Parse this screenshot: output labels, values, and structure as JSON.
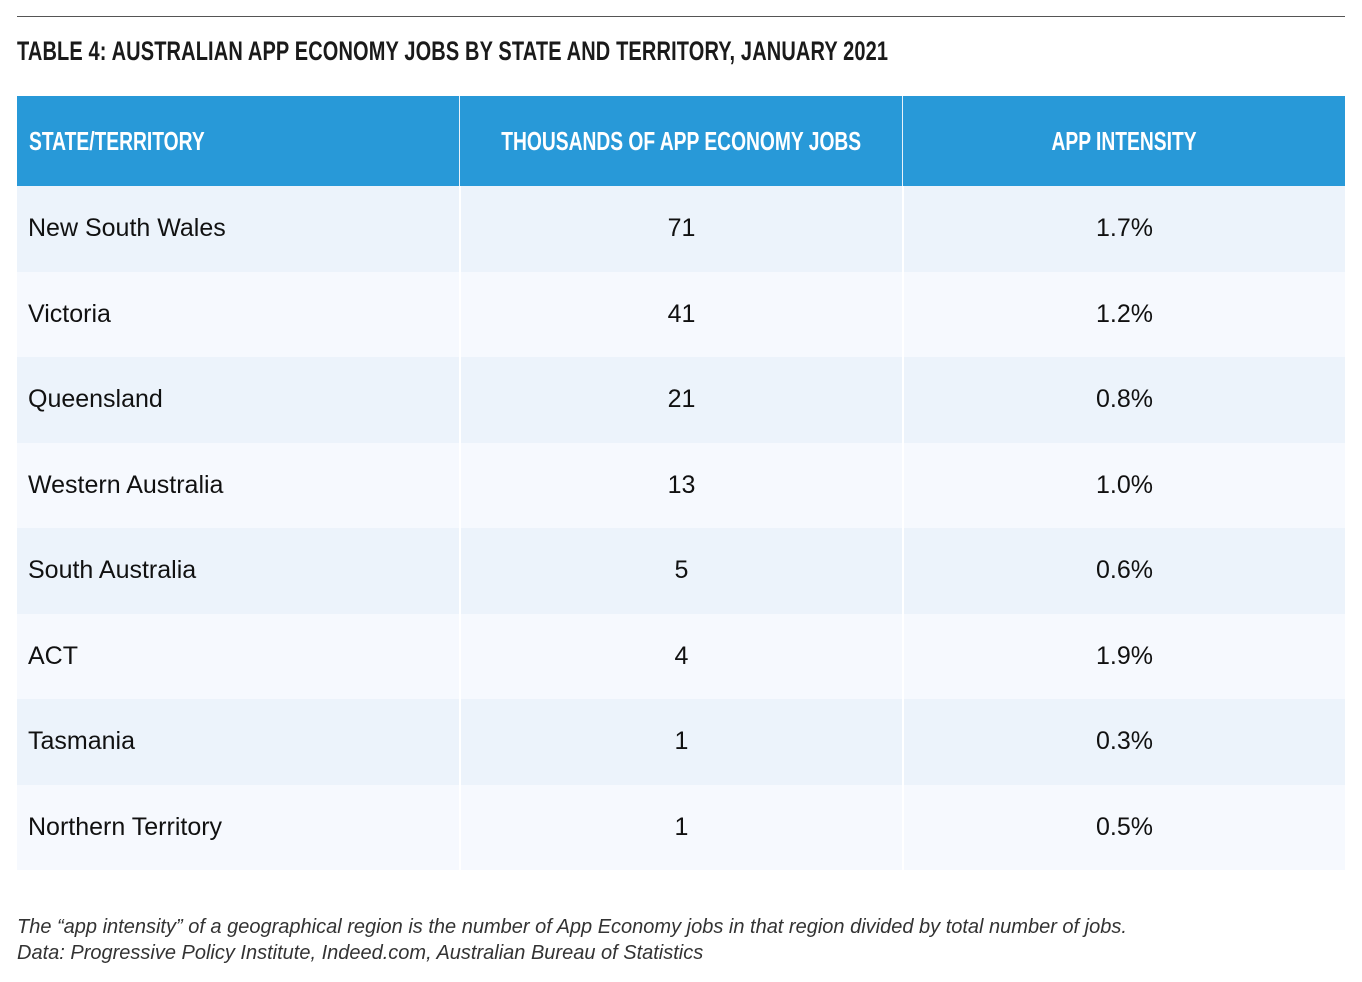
{
  "title": "TABLE 4: AUSTRALIAN APP ECONOMY JOBS BY STATE AND TERRITORY, JANUARY 2021",
  "table": {
    "headers": [
      "STATE/TERRITORY",
      "THOUSANDS OF APP ECONOMY JOBS",
      "APP INTENSITY"
    ],
    "rows": [
      [
        "New South Wales",
        "71",
        "1.7%"
      ],
      [
        "Victoria",
        "41",
        "1.2%"
      ],
      [
        "Queensland",
        "21",
        "0.8%"
      ],
      [
        "Western Australia",
        "13",
        "1.0%"
      ],
      [
        "South Australia",
        "5",
        "0.6%"
      ],
      [
        "ACT",
        "4",
        "1.9%"
      ],
      [
        "Tasmania",
        "1",
        "0.3%"
      ],
      [
        "Northern Territory",
        "1",
        "0.5%"
      ]
    ]
  },
  "footnote": {
    "line1": "The “app intensity” of a geographical region is the number of App Economy jobs in that region divided by total number of jobs.",
    "line2": "Data: Progressive Policy Institute, Indeed.com, Australian Bureau of Statistics"
  },
  "colors": {
    "header_bg": "#2899d8",
    "row_odd": "#ecf3fb",
    "row_even": "#f6f9fe"
  }
}
